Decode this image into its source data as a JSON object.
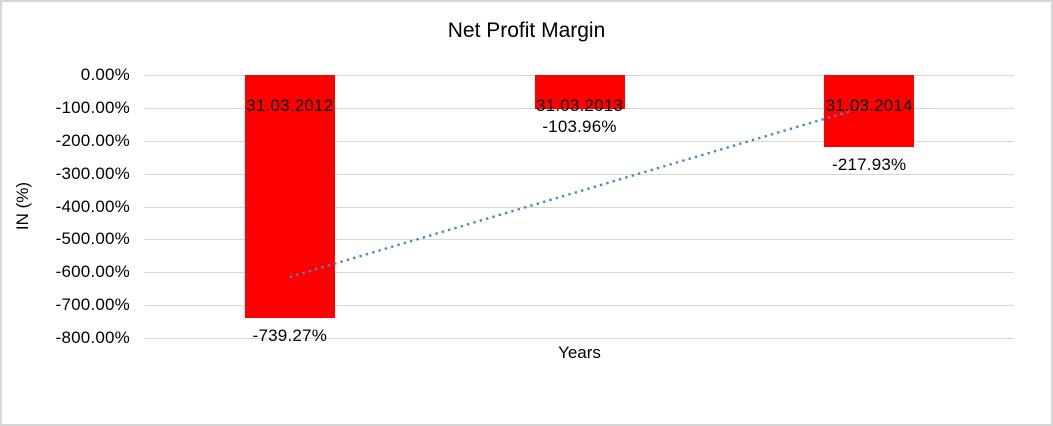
{
  "window": {
    "background_color": "#ffffff",
    "border_color": "#d6d6d6"
  },
  "chart_data": {
    "type": "bar",
    "title": "Net Profit Margin",
    "xlabel": "Years",
    "ylabel": "IN (%)",
    "categories": [
      "31.03.2012",
      "31.03.2013",
      "31.03.2014"
    ],
    "values": [
      -739.27,
      -103.96,
      -217.93
    ],
    "value_labels": [
      "-739.27%",
      "-103.96%",
      "-217.93%"
    ],
    "bar_color": "#ff0000",
    "ylim": [
      0,
      -800
    ],
    "y_ticks": [
      {
        "label": "0.00%",
        "value": 0
      },
      {
        "label": "-100.00%",
        "value": -100
      },
      {
        "label": "-200.00%",
        "value": -200
      },
      {
        "label": "-300.00%",
        "value": -300
      },
      {
        "label": "-400.00%",
        "value": -400
      },
      {
        "label": "-500.00%",
        "value": -500
      },
      {
        "label": "-600.00%",
        "value": -600
      },
      {
        "label": "-700.00%",
        "value": -700
      },
      {
        "label": "-800.00%",
        "value": -800
      }
    ],
    "grid": true,
    "legend": false,
    "gridline_color": "#d6d6d6",
    "trendline": {
      "type": "linear",
      "style": "dotted",
      "color": "#4a86c8",
      "start_value": -614.4,
      "end_value": -93.1
    }
  }
}
